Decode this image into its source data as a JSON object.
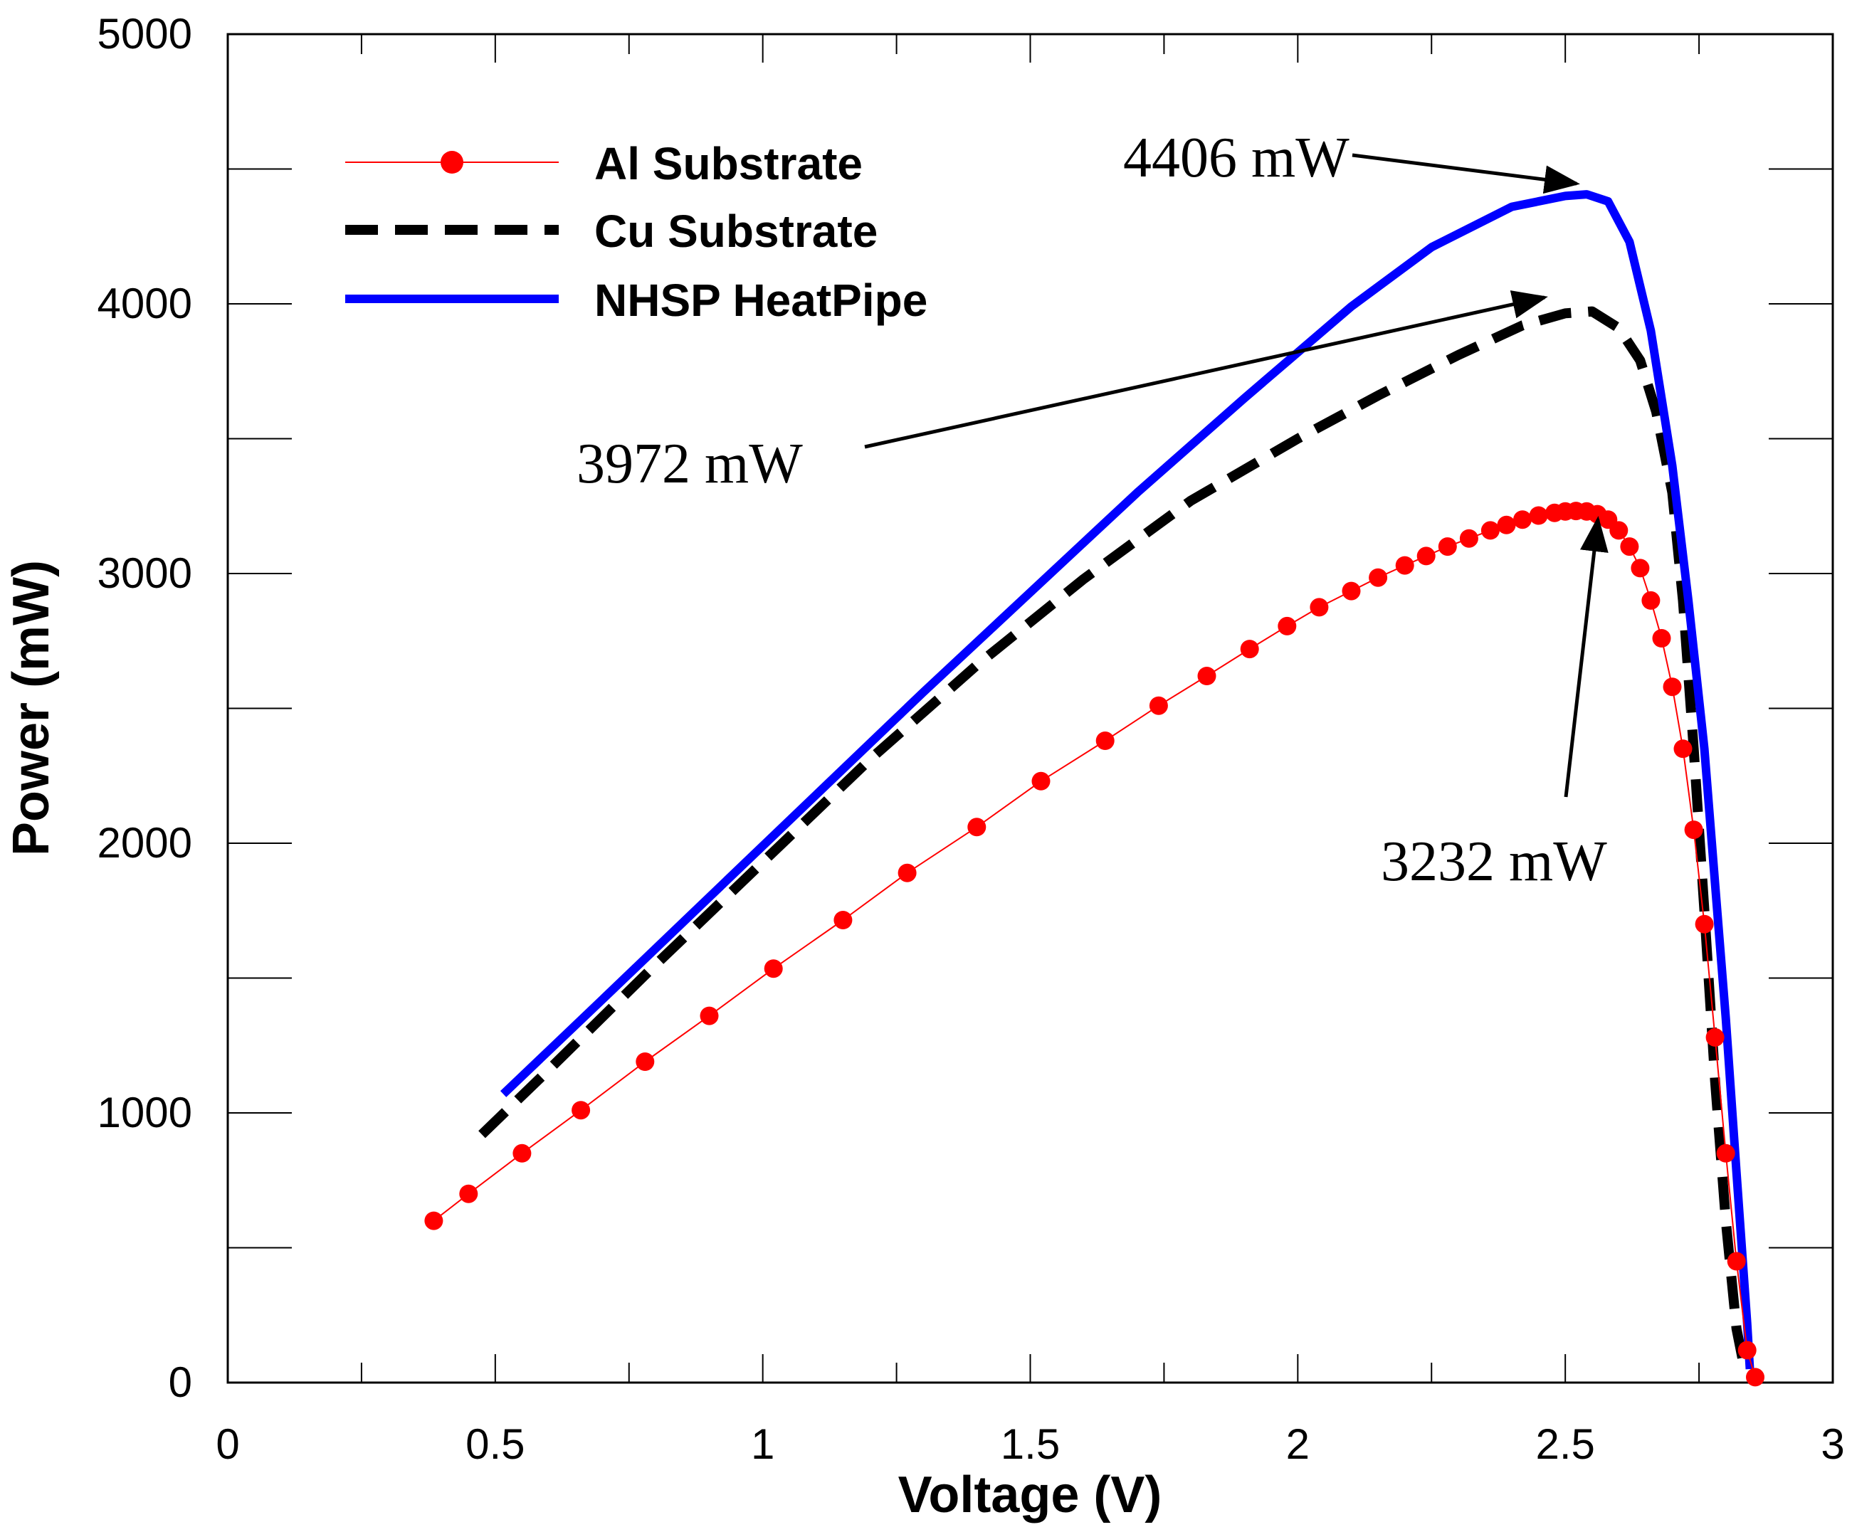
{
  "chart_data": {
    "type": "line",
    "title": "",
    "xlabel": "Voltage (V)",
    "ylabel": "Power (mW)",
    "xlim": [
      0,
      3
    ],
    "ylim": [
      0,
      5000
    ],
    "x_ticks": [
      "0",
      "0.5",
      "1",
      "1.5",
      "2",
      "2.5",
      "3"
    ],
    "y_ticks": [
      "0",
      "1000",
      "2000",
      "3000",
      "4000",
      "5000"
    ],
    "grid": false,
    "legend_position": "top-left",
    "series": [
      {
        "name": "Al Substrate",
        "color": "#ff0000",
        "style": "thin-solid-with-dots",
        "x": [
          0.385,
          0.45,
          0.55,
          0.66,
          0.78,
          0.9,
          1.02,
          1.15,
          1.27,
          1.4,
          1.52,
          1.64,
          1.74,
          1.83,
          1.91,
          1.98,
          2.04,
          2.1,
          2.15,
          2.2,
          2.24,
          2.28,
          2.32,
          2.36,
          2.39,
          2.42,
          2.45,
          2.48,
          2.5,
          2.52,
          2.54,
          2.56,
          2.58,
          2.6,
          2.62,
          2.64,
          2.66,
          2.68,
          2.7,
          2.72,
          2.74,
          2.76,
          2.78,
          2.8,
          2.82,
          2.84,
          2.855
        ],
        "values": [
          600,
          700,
          850,
          1010,
          1190,
          1360,
          1535,
          1715,
          1890,
          2060,
          2230,
          2380,
          2510,
          2620,
          2720,
          2805,
          2875,
          2935,
          2985,
          3030,
          3065,
          3100,
          3130,
          3160,
          3180,
          3200,
          3215,
          3225,
          3230,
          3232,
          3230,
          3220,
          3200,
          3160,
          3100,
          3020,
          2900,
          2760,
          2580,
          2350,
          2050,
          1700,
          1280,
          850,
          450,
          120,
          20
        ]
      },
      {
        "name": "Cu Substrate",
        "color": "#000000",
        "style": "dashed",
        "x": [
          0.475,
          0.6,
          0.8,
          1.0,
          1.2,
          1.4,
          1.6,
          1.8,
          2.0,
          2.15,
          2.3,
          2.42,
          2.5,
          2.55,
          2.6,
          2.64,
          2.67,
          2.7,
          2.72,
          2.74,
          2.76,
          2.78,
          2.8,
          2.82,
          2.835
        ],
        "values": [
          920,
          1160,
          1550,
          1930,
          2310,
          2660,
          2980,
          3270,
          3500,
          3660,
          3810,
          3920,
          3965,
          3972,
          3910,
          3790,
          3600,
          3300,
          2900,
          2350,
          1750,
          1120,
          600,
          200,
          50
        ]
      },
      {
        "name": "NHSP HeatPipe",
        "color": "#0000ff",
        "style": "thick-solid",
        "x": [
          0.515,
          0.7,
          0.9,
          1.1,
          1.3,
          1.5,
          1.7,
          1.9,
          2.1,
          2.25,
          2.4,
          2.5,
          2.54,
          2.58,
          2.62,
          2.66,
          2.7,
          2.73,
          2.76,
          2.78,
          2.8,
          2.82,
          2.84,
          2.845
        ],
        "values": [
          1070,
          1420,
          1800,
          2180,
          2560,
          2930,
          3300,
          3650,
          3990,
          4210,
          4360,
          4400,
          4406,
          4380,
          4230,
          3900,
          3400,
          2900,
          2350,
          1850,
          1350,
          780,
          220,
          50
        ]
      }
    ],
    "annotations": [
      {
        "text": "4406 mW",
        "x": 2.533,
        "y": 4406
      },
      {
        "text": "3972 mW",
        "x": 2.53,
        "y": 3972
      },
      {
        "text": "3232 mW",
        "x": 2.522,
        "y": 3232
      }
    ]
  }
}
